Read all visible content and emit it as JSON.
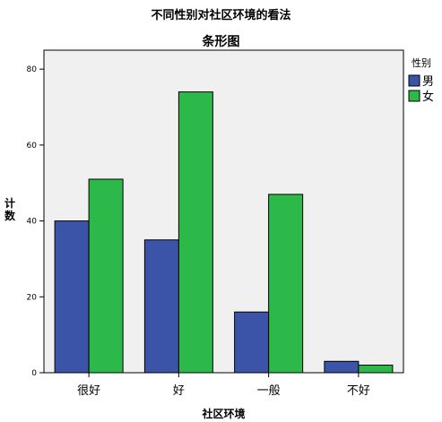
{
  "chart_data": {
    "type": "bar",
    "title": "不同性别对社区环境的看法",
    "subtitle": "条形图",
    "xlabel": "社区环境",
    "ylabel": "计数",
    "categories": [
      "很好",
      "好",
      "一般",
      "不好"
    ],
    "series": [
      {
        "name": "男",
        "values": [
          40,
          35,
          16,
          3
        ],
        "color": "#3b54a8"
      },
      {
        "name": "女",
        "values": [
          51,
          74,
          47,
          2
        ],
        "color": "#2db84a"
      }
    ],
    "ylim": [
      0,
      85
    ],
    "yticks": [
      0,
      20,
      40,
      60,
      80
    ],
    "legend": {
      "title": "性别",
      "placement": "right"
    },
    "grid": false,
    "plot_background": "#f0f0f0"
  }
}
